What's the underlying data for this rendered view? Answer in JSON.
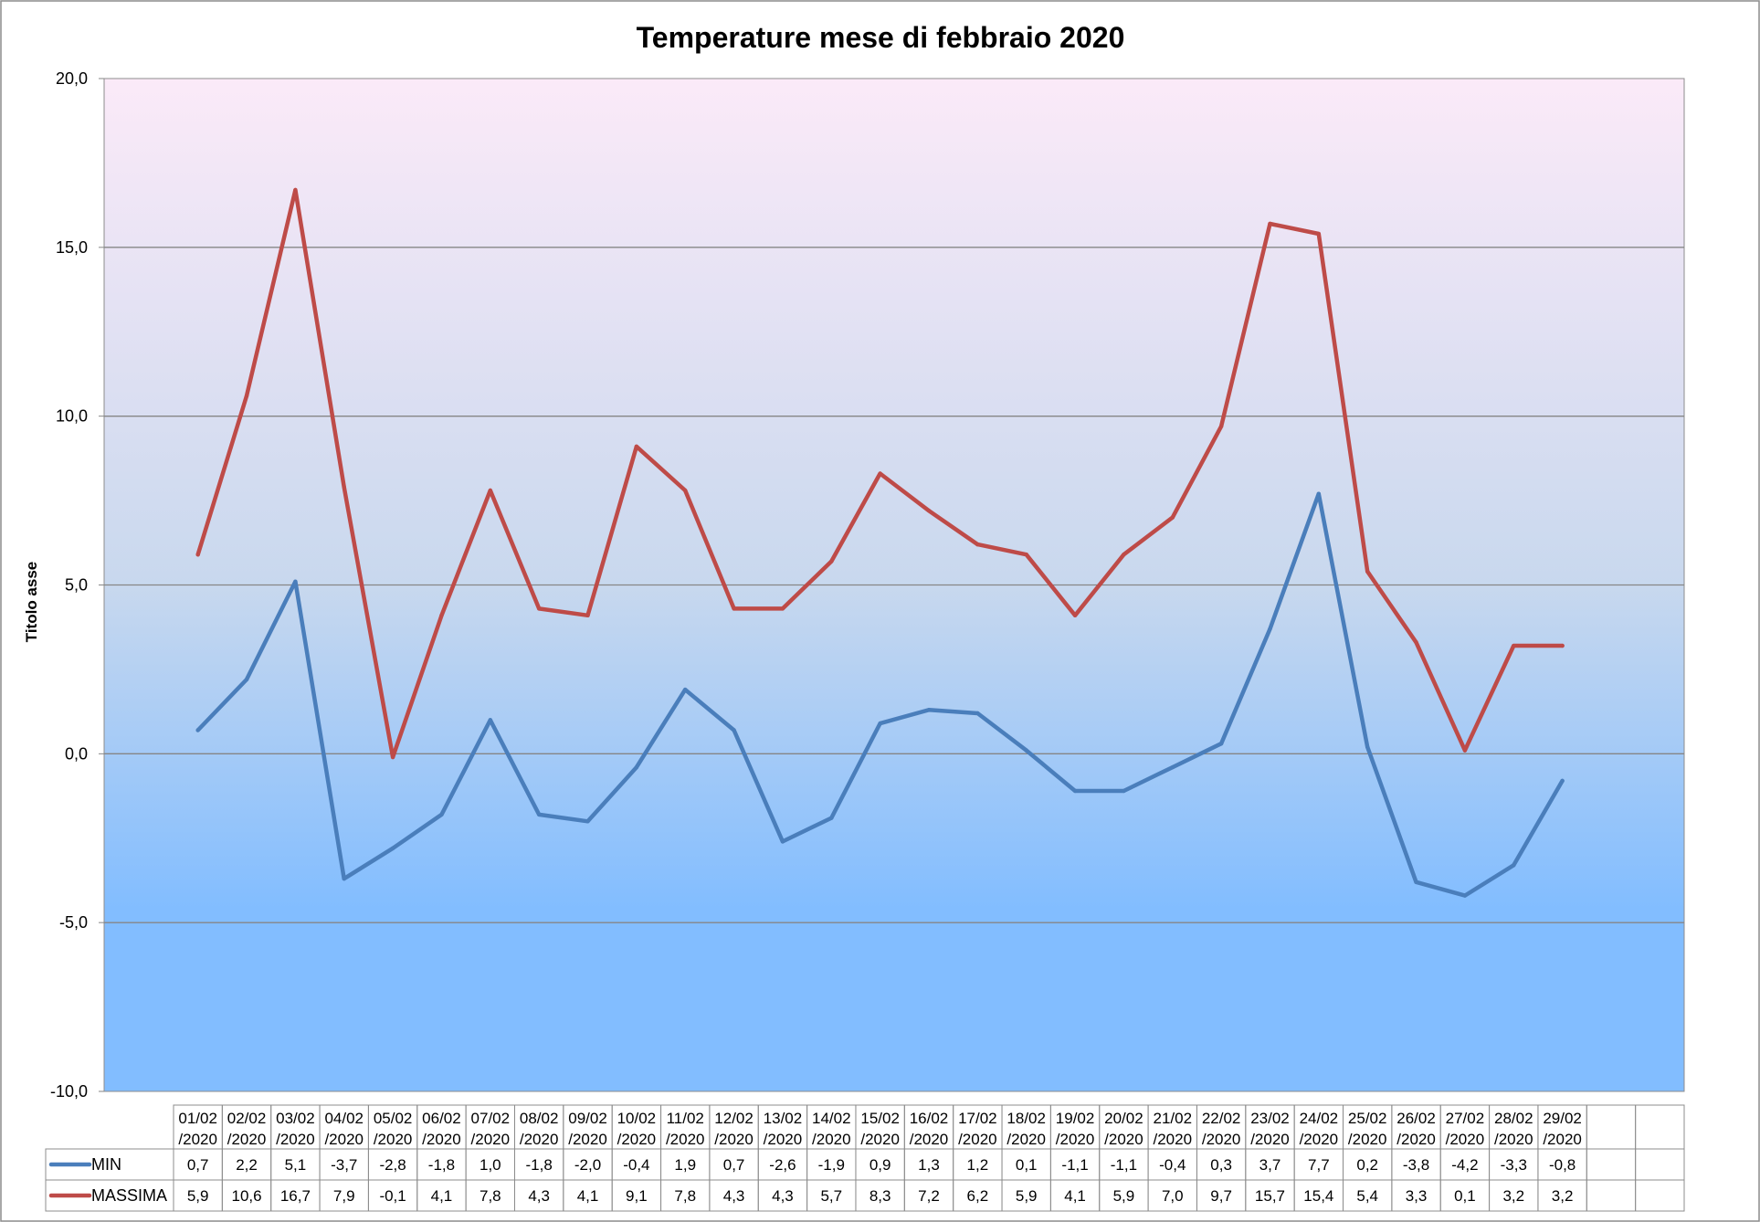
{
  "chart_data": {
    "type": "line",
    "title": "Temperature mese di febbraio 2020",
    "ylabel": "Titolo asse",
    "xlabel": "",
    "ylim": [
      -10,
      20
    ],
    "y_ticks": [
      "20,0",
      "15,0",
      "10,0",
      "5,0",
      "0,0",
      "-5,0",
      "-10,0"
    ],
    "grid": true,
    "legend": "bottom-table",
    "categories": [
      "01/02/2020",
      "02/02/2020",
      "03/02/2020",
      "04/02/2020",
      "05/02/2020",
      "06/02/2020",
      "07/02/2020",
      "08/02/2020",
      "09/02/2020",
      "10/02/2020",
      "11/02/2020",
      "12/02/2020",
      "13/02/2020",
      "14/02/2020",
      "15/02/2020",
      "16/02/2020",
      "17/02/2020",
      "18/02/2020",
      "19/02/2020",
      "20/02/2020",
      "21/02/2020",
      "22/02/2020",
      "23/02/2020",
      "24/02/2020",
      "25/02/2020",
      "26/02/2020",
      "27/02/2020",
      "28/02/2020",
      "29/02/2020",
      "",
      ""
    ],
    "series": [
      {
        "name": "MIN",
        "color": "#4a7ebb",
        "values": [
          0.7,
          2.2,
          5.1,
          -3.7,
          -2.8,
          -1.8,
          1.0,
          -1.8,
          -2.0,
          -0.4,
          1.9,
          0.7,
          -2.6,
          -1.9,
          0.9,
          1.3,
          1.2,
          0.1,
          -1.1,
          -1.1,
          -0.4,
          0.3,
          3.7,
          7.7,
          0.2,
          -3.8,
          -4.2,
          -3.3,
          -0.8,
          null,
          null
        ],
        "labels": [
          "0,7",
          "2,2",
          "5,1",
          "-3,7",
          "-2,8",
          "-1,8",
          "1,0",
          "-1,8",
          "-2,0",
          "-0,4",
          "1,9",
          "0,7",
          "-2,6",
          "-1,9",
          "0,9",
          "1,3",
          "1,2",
          "0,1",
          "-1,1",
          "-1,1",
          "-0,4",
          "0,3",
          "3,7",
          "7,7",
          "0,2",
          "-3,8",
          "-4,2",
          "-3,3",
          "-0,8",
          "",
          ""
        ]
      },
      {
        "name": "MASSIMA",
        "color": "#be4b48",
        "values": [
          5.9,
          10.6,
          16.7,
          7.9,
          -0.1,
          4.1,
          7.8,
          4.3,
          4.1,
          9.1,
          7.8,
          4.3,
          4.3,
          5.7,
          8.3,
          7.2,
          6.2,
          5.9,
          4.1,
          5.9,
          7.0,
          9.7,
          15.7,
          15.4,
          5.4,
          3.3,
          0.1,
          3.2,
          3.2,
          null,
          null
        ],
        "labels": [
          "5,9",
          "10,6",
          "16,7",
          "7,9",
          "-0,1",
          "4,1",
          "7,8",
          "4,3",
          "4,1",
          "9,1",
          "7,8",
          "4,3",
          "4,3",
          "5,7",
          "8,3",
          "7,2",
          "6,2",
          "5,9",
          "4,1",
          "5,9",
          "7,0",
          "9,7",
          "15,7",
          "15,4",
          "5,4",
          "3,3",
          "0,1",
          "3,2",
          "3,2",
          "",
          ""
        ]
      }
    ],
    "plot_background": {
      "top_color": "#fbeaf8",
      "mid_color": "#c8d8ee",
      "bottom_color": "#82bdff"
    }
  }
}
